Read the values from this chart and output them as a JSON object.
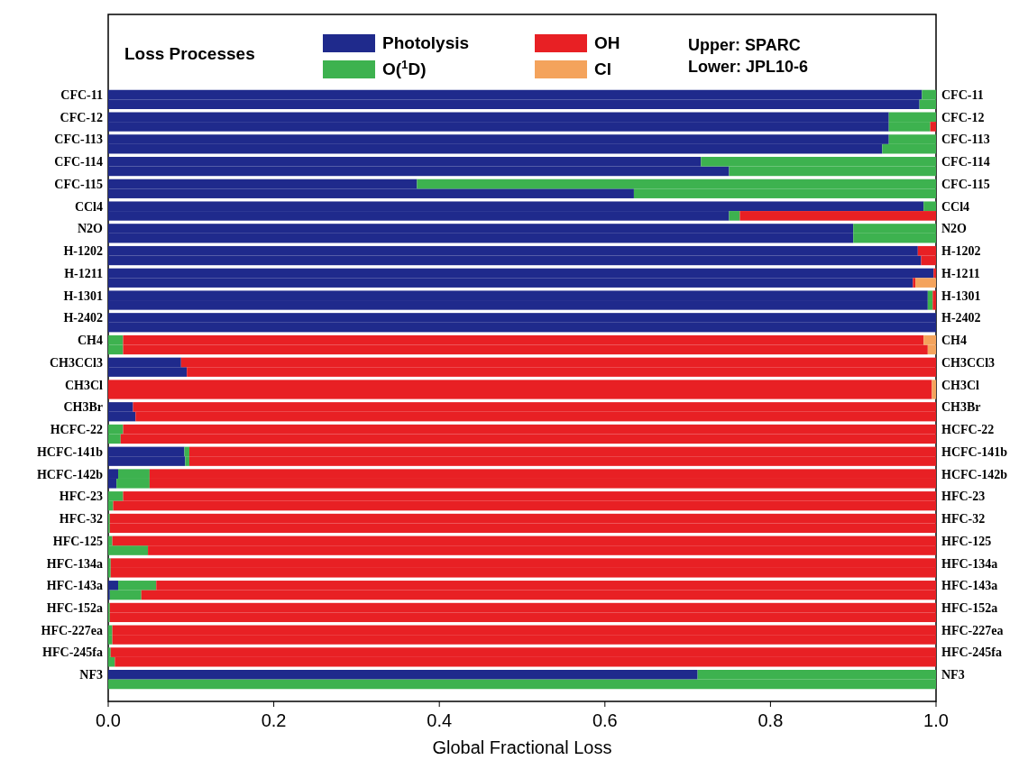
{
  "chart_data": {
    "type": "bar",
    "orientation": "horizontal",
    "stacked": true,
    "legend_title": "Loss Processes",
    "legend": "top",
    "xlabel": "Global Fractional Loss",
    "xlim": [
      0,
      1
    ],
    "xticks": [
      {
        "value": 0,
        "label": "0.0"
      },
      {
        "value": 0.2,
        "label": "0.2"
      },
      {
        "value": 0.4,
        "label": "0.4"
      },
      {
        "value": 0.6,
        "label": "0.6"
      },
      {
        "value": 0.8,
        "label": "0.8"
      },
      {
        "value": 1,
        "label": "1.0"
      }
    ],
    "annotations": [
      "Upper: SPARC",
      "Lower: JPL10-6"
    ],
    "categories": [
      "CFC-11",
      null,
      "CFC-12",
      null,
      "CFC-113",
      null,
      "CFC-114",
      null,
      "CFC-115",
      null,
      "CCl4",
      null,
      "N2O",
      null,
      "H-1202",
      null,
      "H-1211",
      null,
      "H-1301",
      null,
      "H-2402",
      null,
      "CH4",
      null,
      "CH3CCl3",
      null,
      "CH3Cl",
      null,
      "CH3Br",
      null,
      "HCFC-22",
      null,
      "HCFC-141b",
      null,
      "HCFC-142b",
      null,
      "HFC-23",
      null,
      "HFC-32",
      null,
      "HFC-125",
      null,
      "HFC-134a",
      null,
      "HFC-143a",
      null,
      "HFC-152a",
      null,
      "HFC-227ea",
      null,
      "HFC-245fa",
      null,
      "NF3",
      null
    ],
    "y2_categories": [
      "CFC-11",
      null,
      "CFC-12",
      null,
      "CFC-113",
      null,
      "CFC-114",
      null,
      "CFC-115",
      null,
      "CCl4",
      null,
      "N2O",
      null,
      "H-1202",
      null,
      "H-1211",
      null,
      "H-1301",
      null,
      "H-2402",
      null,
      "CH4",
      null,
      "CH3CCl3",
      null,
      "CH3Cl",
      null,
      "CH3Br",
      null,
      "HCFC-22",
      null,
      "HCFC-141b",
      null,
      "HCFC-142b",
      null,
      "HFC-23",
      null,
      "HFC-32",
      null,
      "HFC-125",
      null,
      "HFC-134a",
      null,
      "HFC-143a",
      null,
      "HFC-152a",
      null,
      "HFC-227ea",
      null,
      "HFC-245fa",
      null,
      "NF3",
      null
    ],
    "series": [
      {
        "name": "Photolysis",
        "color": "#1f2a8c",
        "values": [
          0.983,
          0.98,
          0.943,
          0.943,
          0.943,
          0.935,
          0.716,
          0.75,
          0.373,
          0.635,
          0.985,
          0.75,
          0.9,
          0.9,
          0.978,
          0.982,
          0.997,
          0.972,
          0.99,
          0.99,
          1,
          1,
          0,
          0,
          0.088,
          0.095,
          0,
          0,
          0.03,
          0.033,
          0,
          0,
          0.092,
          0.093,
          0.012,
          0.01,
          0,
          0,
          0,
          0,
          0,
          0,
          0,
          0,
          0.012,
          0.002,
          0,
          0,
          0,
          0,
          0,
          0,
          0.712,
          0
        ]
      },
      {
        "name": "O($^{1}$D)",
        "color": "#3db24f",
        "values": [
          0.017,
          0.02,
          0.057,
          0.05,
          0.057,
          0.065,
          0.284,
          0.25,
          0.627,
          0.365,
          0.015,
          0.013,
          0.1,
          0.1,
          0,
          0,
          0,
          0,
          0.006,
          0.006,
          0,
          0,
          0.018,
          0.018,
          0,
          0,
          0,
          0,
          0,
          0,
          0.018,
          0.015,
          0.006,
          0.005,
          0.038,
          0.04,
          0.018,
          0.006,
          0.002,
          0.002,
          0.005,
          0.048,
          0.003,
          0.003,
          0.046,
          0.038,
          0.002,
          0.002,
          0.005,
          0.005,
          0.003,
          0.008,
          0.288,
          1
        ]
      },
      {
        "name": "OH",
        "color": "#e82024",
        "values": [
          0,
          0,
          0,
          0.007,
          0,
          0,
          0,
          0,
          0,
          0,
          0,
          0.237,
          0,
          0,
          0.022,
          0.018,
          0.003,
          0.003,
          0.004,
          0.004,
          0,
          0,
          0.967,
          0.972,
          0.912,
          0.905,
          0.995,
          0.995,
          0.97,
          0.967,
          0.982,
          0.985,
          0.902,
          0.902,
          0.95,
          0.95,
          0.982,
          0.994,
          0.998,
          0.998,
          0.995,
          0.952,
          0.997,
          0.997,
          0.942,
          0.96,
          0.998,
          0.998,
          0.995,
          0.995,
          0.997,
          0.992,
          0,
          0
        ]
      },
      {
        "name": "Cl",
        "color": "#f4a35c",
        "values": [
          0,
          0,
          0,
          0,
          0,
          0,
          0,
          0,
          0,
          0,
          0,
          0,
          0,
          0,
          0,
          0,
          0,
          0.025,
          0,
          0,
          0,
          0,
          0.015,
          0.01,
          0,
          0,
          0.005,
          0.005,
          0,
          0,
          0,
          0,
          0,
          0,
          0,
          0,
          0,
          0,
          0,
          0,
          0,
          0,
          0,
          0,
          0,
          0,
          0,
          0,
          0,
          0,
          0,
          0,
          0,
          0
        ]
      }
    ]
  }
}
